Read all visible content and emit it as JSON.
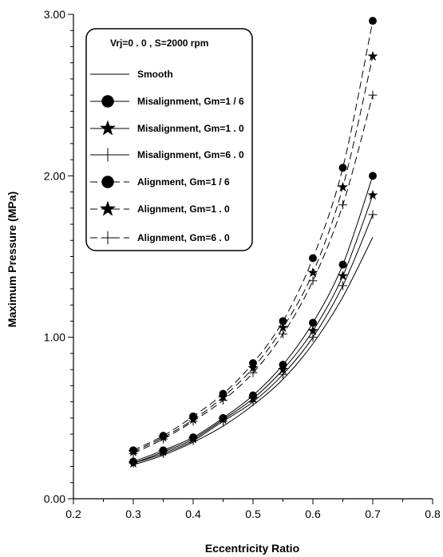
{
  "chart_data": {
    "type": "line",
    "xlabel": "Eccentricity Ratio",
    "ylabel": "Maximum Pressure (MPa)",
    "xlim": [
      0.2,
      0.8
    ],
    "ylim": [
      0.0,
      3.0
    ],
    "x_ticks": [
      "0.2",
      "0.3",
      "0.4",
      "0.5",
      "0.6",
      "0.7",
      "0.8"
    ],
    "y_ticks": [
      "0.00",
      "1.00",
      "2.00",
      "3.00"
    ],
    "grid": false,
    "legend_placement": "top-left",
    "legend_header": "Vrj=0 . 0  ,  S=2000 rpm",
    "x": [
      0.3,
      0.35,
      0.4,
      0.45,
      0.5,
      0.55,
      0.6,
      0.65,
      0.7
    ],
    "series": [
      {
        "name": "Smooth",
        "marker": "none",
        "dash": "solid",
        "values": [
          0.21,
          0.27,
          0.35,
          0.45,
          0.58,
          0.74,
          0.96,
          1.25,
          1.62
        ]
      },
      {
        "name": "Misalignment, Gm=1 / 6",
        "marker": "circle",
        "dash": "solid",
        "values": [
          0.23,
          0.3,
          0.38,
          0.5,
          0.64,
          0.83,
          1.09,
          1.45,
          2.0
        ]
      },
      {
        "name": "Misalignment, Gm=1 . 0",
        "marker": "star",
        "dash": "solid",
        "values": [
          0.22,
          0.29,
          0.37,
          0.49,
          0.62,
          0.8,
          1.04,
          1.38,
          1.88
        ]
      },
      {
        "name": "Misalignment, Gm=6 . 0",
        "marker": "plus",
        "dash": "solid",
        "values": [
          0.22,
          0.28,
          0.36,
          0.48,
          0.6,
          0.77,
          1.0,
          1.32,
          1.76
        ]
      },
      {
        "name": "Alignment, Gm=1 / 6",
        "marker": "circle",
        "dash": "dashed",
        "values": [
          0.3,
          0.39,
          0.51,
          0.65,
          0.84,
          1.1,
          1.49,
          2.05,
          2.96
        ]
      },
      {
        "name": "Alignment, Gm=1 . 0",
        "marker": "star",
        "dash": "dashed",
        "values": [
          0.29,
          0.38,
          0.49,
          0.63,
          0.81,
          1.06,
          1.4,
          1.93,
          2.74
        ]
      },
      {
        "name": "Alignment, Gm=6 . 0",
        "marker": "plus",
        "dash": "dashed",
        "values": [
          0.28,
          0.37,
          0.48,
          0.61,
          0.78,
          1.02,
          1.35,
          1.82,
          2.5
        ]
      }
    ]
  }
}
